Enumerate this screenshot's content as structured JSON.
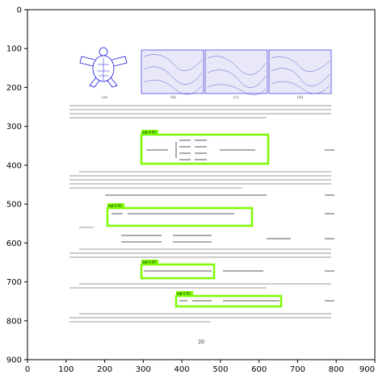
{
  "plot": {
    "x_ticks": [
      "0",
      "100",
      "200",
      "300",
      "400",
      "500",
      "600",
      "700",
      "800",
      "900"
    ],
    "y_ticks": [
      "0",
      "100",
      "200",
      "300",
      "400",
      "500",
      "600",
      "700",
      "800",
      "900"
    ]
  },
  "page": {
    "subfigure_captions": [
      "(a)",
      "(b)",
      "(c)",
      "(d)"
    ],
    "page_number": "20"
  },
  "annotations": {
    "color": "#7CFC00",
    "boxes": [
      {
        "label": "eqt 0.93"
      },
      {
        "label": "eqt 0.92"
      },
      {
        "label": "eqt 0.93"
      },
      {
        "label": "eqt 0.91"
      }
    ]
  }
}
